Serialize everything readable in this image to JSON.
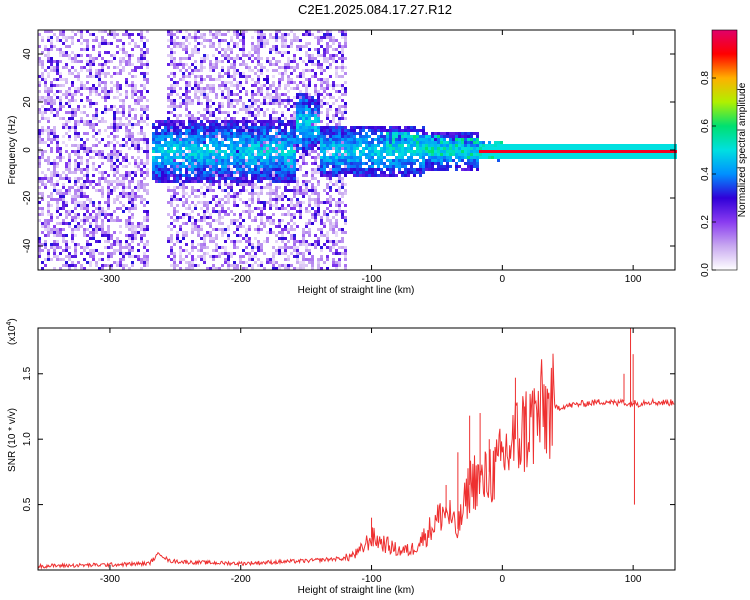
{
  "title": "C2E1.2025.084.17.27.R12",
  "chart_data": [
    {
      "type": "heatmap",
      "xlabel": "Height of straight line (km)",
      "ylabel": "Frequency (Hz)",
      "xlim": [
        -355,
        132
      ],
      "ylim": [
        -50,
        50
      ],
      "xticks": [
        -300,
        -200,
        -100,
        0,
        100
      ],
      "yticks": [
        -40,
        -20,
        0,
        20,
        40
      ],
      "xtick_labels": [
        "-300",
        "-200",
        "-100",
        "0",
        "100"
      ],
      "ytick_labels": [
        "-40",
        "-20",
        "0",
        "20",
        "40"
      ],
      "colorbar": {
        "label": "Normalized spectral amplitude",
        "range": [
          0,
          1
        ],
        "ticks": [
          0.0,
          0.2,
          0.4,
          0.6,
          0.8
        ],
        "tick_labels": [
          "0.0",
          "0.2",
          "0.4",
          "0.6",
          "0.8"
        ],
        "colormap": [
          "#ffffff",
          "#c8a8f0",
          "#8a3cf0",
          "#3000d8",
          "#0090ff",
          "#00e0e0",
          "#00e070",
          "#b0f000",
          "#ffb000",
          "#ff0000",
          "#e0006a"
        ]
      },
      "features": [
        {
          "name": "noise-cloud",
          "x_range": [
            -355,
            -120
          ],
          "y_range": [
            -50,
            50
          ],
          "amplitude": 0.15
        },
        {
          "name": "central-band",
          "x_range": [
            -270,
            -20
          ],
          "freq_center": 0,
          "amplitude": 0.35
        },
        {
          "name": "tail-band",
          "x_range": [
            -90,
            0
          ],
          "freq_center": 0,
          "amplitude": 0.5
        },
        {
          "name": "carrier-line",
          "x_range": [
            -20,
            132
          ],
          "freq_center": 0,
          "amplitude": 0.95
        }
      ]
    },
    {
      "type": "line",
      "xlabel": "Height of straight line (km)",
      "ylabel": "SNR (10 * v/v)",
      "y_multiplier": "(x10",
      "y_multiplier_exp": "4",
      "y_multiplier_close": ")",
      "xlim": [
        -355,
        132
      ],
      "ylim": [
        0,
        18500
      ],
      "xticks": [
        -300,
        -200,
        -100,
        0,
        100
      ],
      "yticks": [
        5000,
        10000,
        15000
      ],
      "xtick_labels": [
        "-300",
        "-200",
        "-100",
        "0",
        "100"
      ],
      "ytick_labels": [
        "0.5",
        "1.0",
        "1.5"
      ],
      "color": "#ee3030",
      "series": [
        {
          "x": [
            -355,
            -300,
            -270,
            -262,
            -255,
            -240,
            -200,
            -150,
            -120,
            -110,
            -100,
            -90,
            -80,
            -70,
            -60,
            -50,
            -45,
            -40,
            -35,
            -30,
            -25,
            -20,
            -15,
            -10,
            -5,
            0,
            10,
            20,
            30,
            40,
            60,
            80,
            88,
            92,
            96,
            100,
            104,
            110,
            120,
            132
          ],
          "y": [
            300,
            400,
            500,
            1300,
            700,
            600,
            500,
            700,
            900,
            1300,
            2500,
            2000,
            1500,
            1500,
            2500,
            3800,
            4500,
            4200,
            2800,
            4500,
            6500,
            7000,
            6500,
            7500,
            7500,
            8500,
            10000,
            11000,
            12000,
            12400,
            12700,
            12900,
            12700,
            13000,
            12600,
            12800,
            12700,
            12900,
            12800,
            12800
          ]
        }
      ],
      "spikes": [
        {
          "x": -100,
          "y": 4000
        },
        {
          "x": -43,
          "y": 6500
        },
        {
          "x": -34,
          "y": 9000
        },
        {
          "x": -25,
          "y": 11800
        },
        {
          "x": -17,
          "y": 12000
        },
        {
          "x": -10,
          "y": 10000
        },
        {
          "x": 10,
          "y": 14700
        },
        {
          "x": 17,
          "y": 12500
        },
        {
          "x": 27,
          "y": 12000
        },
        {
          "x": 93,
          "y": 15000
        },
        {
          "x": 98,
          "y": 18500
        },
        {
          "x": 100,
          "y": 16500
        },
        {
          "x": 101,
          "y": 5000
        }
      ]
    }
  ]
}
